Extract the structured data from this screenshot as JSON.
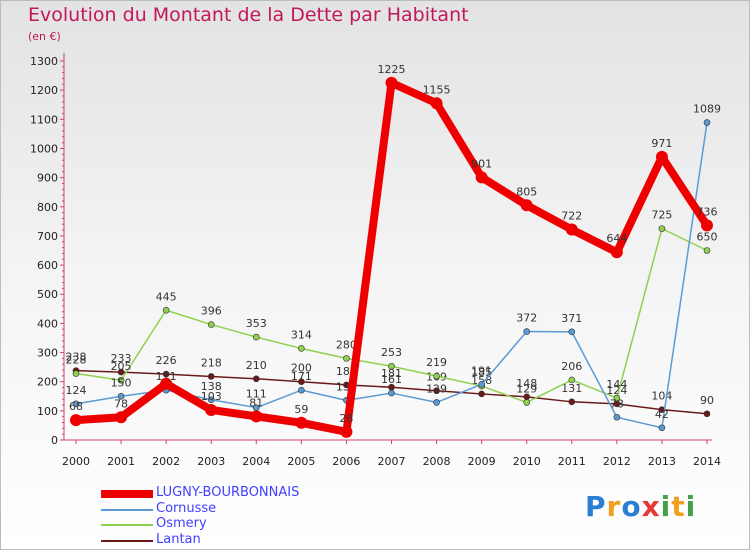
{
  "chart_data": {
    "type": "line",
    "title": "Evolution du Montant de la Dette par Habitant",
    "subtitle": "(en €)",
    "x": [
      "2000",
      "2001",
      "2002",
      "2003",
      "2004",
      "2005",
      "2006",
      "2007",
      "2008",
      "2009",
      "2010",
      "2011",
      "2012",
      "2013",
      "2014"
    ],
    "ylim": [
      0,
      1300
    ],
    "yticks": [
      0,
      100,
      200,
      300,
      400,
      500,
      600,
      700,
      800,
      900,
      1000,
      1100,
      1200,
      1300
    ],
    "grid": false,
    "legend_position": "bottom-left",
    "series": [
      {
        "name": "Lantan",
        "color": "#6b1a1a",
        "width": 1.5,
        "marker": 3,
        "values": [
          238,
          233,
          226,
          218,
          210,
          200,
          189,
          181,
          169,
          158,
          148,
          131,
          124,
          104,
          90
        ],
        "labels": [
          "238",
          "233",
          "226",
          "218",
          "210",
          "200",
          "189",
          "181",
          "169",
          "158",
          "148",
          "131",
          "124",
          "104",
          "90"
        ]
      },
      {
        "name": "Osmery",
        "color": "#8fd14f",
        "width": 1.5,
        "marker": 3,
        "values": [
          228,
          205,
          445,
          396,
          353,
          314,
          280,
          253,
          219,
          185,
          129,
          206,
          144,
          725,
          650
        ],
        "labels": [
          "228",
          "205",
          "445",
          "396",
          "353",
          "314",
          "280",
          "253",
          "219",
          "185",
          "129",
          "206",
          "144",
          "725",
          "650"
        ]
      },
      {
        "name": "Cornusse",
        "color": "#5b9bd5",
        "width": 1.5,
        "marker": 3,
        "values": [
          124,
          150,
          171,
          138,
          111,
          171,
          136,
          161,
          129,
          191,
          372,
          371,
          78,
          42,
          1089
        ],
        "labels": [
          "124",
          "150",
          "171",
          "138",
          "111",
          "171",
          "136",
          "161",
          "129",
          "191",
          "372",
          "371",
          "78",
          "42",
          "1089"
        ]
      },
      {
        "name": "LUGNY-BOURBONNAIS",
        "color": "#ee0000",
        "width": 8,
        "marker": 6,
        "values": [
          68,
          78,
          193,
          103,
          81,
          59,
          28,
          1225,
          1155,
          901,
          805,
          722,
          644,
          971,
          736
        ],
        "labels": [
          "68",
          "78",
          "",
          "103",
          "81",
          "59",
          "28",
          "1225",
          "1155",
          "901",
          "805",
          "722",
          "644",
          "971",
          "736"
        ]
      }
    ],
    "legend": [
      {
        "name": "LUGNY-BOURBONNAIS",
        "color": "#ee0000",
        "text_color": "#4040ff"
      },
      {
        "name": "Cornusse",
        "color": "#5b9bd5",
        "text_color": "#4040ff"
      },
      {
        "name": "Osmery",
        "color": "#8fd14f",
        "text_color": "#4040ff"
      },
      {
        "name": "Lantan",
        "color": "#6b1a1a",
        "text_color": "#4040ff"
      }
    ]
  },
  "brand": {
    "p": "P",
    "r": "r",
    "o": "o",
    "x": "x",
    "i1": "i",
    "t": "t",
    "i2": "i"
  }
}
